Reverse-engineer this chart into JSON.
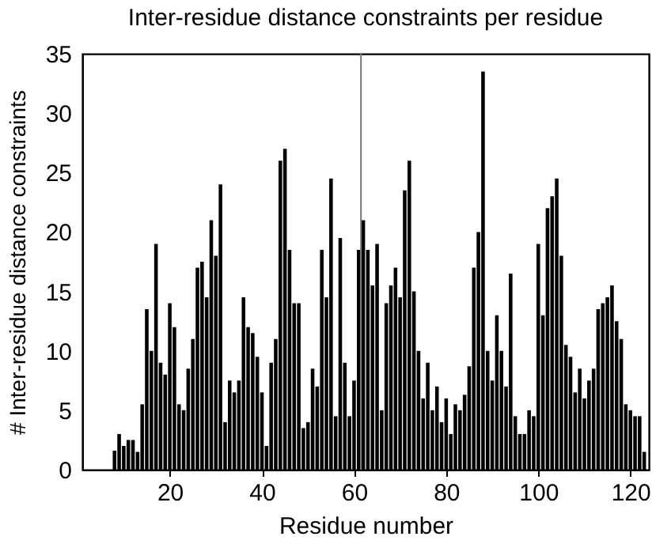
{
  "chart_data": {
    "type": "bar",
    "title": "Inter-residue distance constraints per residue",
    "xlabel": "Residue number",
    "ylabel": "# Inter-residue distance constraints",
    "x": [
      8,
      9,
      10,
      11,
      12,
      13,
      14,
      15,
      16,
      17,
      18,
      19,
      20,
      21,
      22,
      23,
      24,
      25,
      26,
      27,
      28,
      29,
      30,
      31,
      32,
      33,
      34,
      35,
      36,
      37,
      38,
      39,
      40,
      41,
      42,
      43,
      44,
      45,
      46,
      47,
      48,
      49,
      50,
      51,
      52,
      53,
      54,
      55,
      56,
      57,
      58,
      59,
      60,
      61,
      62,
      63,
      64,
      65,
      66,
      67,
      68,
      69,
      70,
      71,
      72,
      73,
      74,
      75,
      76,
      77,
      78,
      79,
      80,
      81,
      82,
      83,
      84,
      85,
      86,
      87,
      88,
      89,
      90,
      91,
      92,
      93,
      94,
      95,
      96,
      97,
      98,
      99,
      100,
      101,
      102,
      103,
      104,
      105,
      106,
      107,
      108,
      109,
      110,
      111,
      112,
      113,
      114,
      115,
      116,
      117,
      118,
      119,
      120,
      121,
      122,
      123
    ],
    "values": [
      1.6,
      3,
      2,
      2.5,
      2.5,
      1.5,
      5.5,
      13.5,
      10,
      19,
      9,
      8,
      14,
      12,
      5.5,
      5,
      8.5,
      11,
      17,
      17.5,
      14.5,
      21,
      18,
      24,
      4,
      7.5,
      6.5,
      7.5,
      14.5,
      12,
      11.5,
      9.5,
      6.5,
      2,
      9,
      11,
      26,
      27,
      18.5,
      14,
      14,
      3.5,
      4,
      8.5,
      7,
      18.5,
      14.5,
      24.5,
      4.5,
      19.5,
      9,
      4.5,
      7.5,
      18.5,
      21,
      18.5,
      15.5,
      19,
      5,
      14,
      15.5,
      17,
      14.5,
      23.5,
      26,
      15,
      10,
      6,
      9,
      5,
      7,
      4,
      6,
      3,
      5.5,
      5,
      6.3,
      8.7,
      17,
      20,
      33.5,
      10,
      7.5,
      13,
      10,
      7,
      16.5,
      4.5,
      3,
      3,
      5,
      4.5,
      19,
      13,
      22,
      23,
      24.5,
      18,
      10.5,
      9.5,
      6.5,
      8.5,
      6,
      7.5,
      8.5,
      13.5,
      14,
      14.5,
      15.5,
      12.5,
      11,
      5.5,
      5,
      4.5,
      4.5,
      1.5
    ],
    "color": "#000000",
    "xlim": [
      1,
      124
    ],
    "xticks": [
      20,
      40,
      60,
      80,
      100,
      120
    ],
    "ylim": [
      0,
      35
    ],
    "yticks": [
      0,
      5,
      10,
      15,
      20,
      25,
      30,
      35
    ],
    "grid": false,
    "ref_lines": [
      {
        "axis": "x",
        "value": 61.5,
        "color": "#777777"
      }
    ]
  }
}
